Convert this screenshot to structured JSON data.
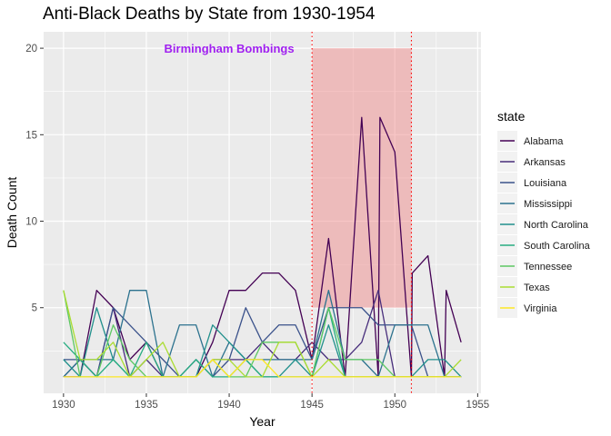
{
  "chart_data": {
    "type": "line",
    "title": "Anti-Black Deaths by State from 1930-1954",
    "xlabel": "Year",
    "ylabel": "Death Count",
    "xlim": [
      1928.8,
      1955.2
    ],
    "ylim": [
      0.05,
      20.95
    ],
    "x_ticks": [
      1930,
      1935,
      1940,
      1945,
      1950,
      1955
    ],
    "y_ticks": [
      5,
      10,
      15,
      20
    ],
    "grid": true,
    "legend_title": "state",
    "legend_position": "right",
    "annotation": {
      "label": "Birmingham Bombings",
      "x": 1940,
      "y": 20,
      "color": "#a020f0"
    },
    "highlight": {
      "x_range": [
        1945,
        1951
      ],
      "y_range": [
        5,
        20
      ],
      "color": "#f08080",
      "opacity": 0.45
    },
    "vlines": {
      "x": [
        1945,
        1951
      ],
      "color": "#ff0000",
      "style": "dotted"
    },
    "series": [
      {
        "name": "Alabama",
        "color": "#440154",
        "points": [
          [
            1930,
            1
          ],
          [
            1931,
            1
          ],
          [
            1932,
            6
          ],
          [
            1933,
            5
          ],
          [
            1934,
            2
          ],
          [
            1935,
            3
          ],
          [
            1936,
            1
          ],
          [
            1937,
            1
          ],
          [
            1938,
            1
          ],
          [
            1939,
            3
          ],
          [
            1940,
            6
          ],
          [
            1941,
            6
          ],
          [
            1942,
            7
          ],
          [
            1943,
            7
          ],
          [
            1944,
            6
          ],
          [
            1945,
            2
          ],
          [
            1946,
            9
          ],
          [
            1947,
            1
          ],
          [
            1948,
            16
          ],
          [
            1949,
            1
          ],
          [
            1949.1,
            16
          ],
          [
            1950,
            14
          ],
          [
            1951,
            1
          ],
          [
            1951.05,
            7
          ],
          [
            1952,
            8
          ],
          [
            1953,
            1
          ],
          [
            1953.1,
            6
          ],
          [
            1954,
            3
          ]
        ]
      },
      {
        "name": "Arkansas",
        "color": "#472d7b",
        "points": [
          [
            1930,
            1
          ],
          [
            1931,
            2
          ],
          [
            1932,
            1
          ],
          [
            1933,
            5
          ],
          [
            1934,
            1
          ],
          [
            1935,
            2
          ],
          [
            1936,
            1
          ],
          [
            1937,
            1
          ],
          [
            1938,
            1
          ],
          [
            1939,
            2
          ],
          [
            1940,
            2
          ],
          [
            1941,
            2
          ],
          [
            1942,
            3
          ],
          [
            1943,
            2
          ],
          [
            1944,
            2
          ],
          [
            1945,
            3
          ],
          [
            1946,
            2
          ],
          [
            1947,
            2
          ],
          [
            1948,
            3
          ],
          [
            1949,
            6
          ],
          [
            1950,
            1
          ],
          [
            1951,
            1
          ],
          [
            1952,
            1
          ],
          [
            1953,
            1
          ],
          [
            1954,
            1
          ]
        ]
      },
      {
        "name": "Louisiana",
        "color": "#3b528b",
        "points": [
          [
            1930,
            2
          ],
          [
            1931,
            2
          ],
          [
            1932,
            1
          ],
          [
            1933,
            5
          ],
          [
            1934,
            4
          ],
          [
            1935,
            3
          ],
          [
            1936,
            2
          ],
          [
            1937,
            1
          ],
          [
            1938,
            2
          ],
          [
            1939,
            1
          ],
          [
            1940,
            2
          ],
          [
            1941,
            5
          ],
          [
            1942,
            3
          ],
          [
            1943,
            4
          ],
          [
            1944,
            4
          ],
          [
            1945,
            2
          ],
          [
            1946,
            5
          ],
          [
            1947,
            5
          ],
          [
            1948,
            5
          ],
          [
            1949,
            4
          ],
          [
            1950,
            4
          ],
          [
            1951,
            4
          ],
          [
            1952,
            1
          ],
          [
            1953,
            1
          ],
          [
            1954,
            1
          ]
        ]
      },
      {
        "name": "Mississippi",
        "color": "#2c728e",
        "points": [
          [
            1930,
            1
          ],
          [
            1931,
            2
          ],
          [
            1932,
            2
          ],
          [
            1933,
            2
          ],
          [
            1934,
            6
          ],
          [
            1935,
            6
          ],
          [
            1936,
            1
          ],
          [
            1937,
            4
          ],
          [
            1938,
            4
          ],
          [
            1939,
            1
          ],
          [
            1940,
            3
          ],
          [
            1941,
            2
          ],
          [
            1942,
            2
          ],
          [
            1943,
            2
          ],
          [
            1944,
            2
          ],
          [
            1945,
            2
          ],
          [
            1946,
            6
          ],
          [
            1947,
            2
          ],
          [
            1948,
            2
          ],
          [
            1949,
            1
          ],
          [
            1950,
            4
          ],
          [
            1951,
            4
          ],
          [
            1952,
            4
          ],
          [
            1953,
            1
          ],
          [
            1954,
            1
          ]
        ]
      },
      {
        "name": "North Carolina",
        "color": "#21908c",
        "points": [
          [
            1930,
            2
          ],
          [
            1931,
            1
          ],
          [
            1932,
            5
          ],
          [
            1933,
            2
          ],
          [
            1934,
            1
          ],
          [
            1935,
            1
          ],
          [
            1936,
            1
          ],
          [
            1937,
            1
          ],
          [
            1938,
            1
          ],
          [
            1939,
            4
          ],
          [
            1940,
            3
          ],
          [
            1941,
            2
          ],
          [
            1942,
            1
          ],
          [
            1943,
            1
          ],
          [
            1944,
            2
          ],
          [
            1945,
            1
          ],
          [
            1946,
            4
          ],
          [
            1947,
            1
          ],
          [
            1948,
            1
          ],
          [
            1949,
            1
          ],
          [
            1950,
            1
          ],
          [
            1951,
            1
          ],
          [
            1952,
            2
          ],
          [
            1953,
            2
          ],
          [
            1954,
            1
          ]
        ]
      },
      {
        "name": "South Carolina",
        "color": "#27ad81",
        "points": [
          [
            1930,
            3
          ],
          [
            1931,
            2
          ],
          [
            1932,
            1
          ],
          [
            1933,
            2
          ],
          [
            1934,
            1
          ],
          [
            1935,
            3
          ],
          [
            1936,
            1
          ],
          [
            1937,
            1
          ],
          [
            1938,
            2
          ],
          [
            1939,
            1
          ],
          [
            1940,
            1
          ],
          [
            1941,
            2
          ],
          [
            1942,
            1
          ],
          [
            1943,
            1
          ],
          [
            1944,
            1
          ],
          [
            1945,
            1
          ],
          [
            1946,
            5
          ],
          [
            1947,
            1
          ],
          [
            1948,
            1
          ],
          [
            1949,
            1
          ],
          [
            1950,
            1
          ],
          [
            1951,
            1
          ],
          [
            1952,
            1
          ],
          [
            1953,
            1
          ],
          [
            1954,
            1
          ]
        ]
      },
      {
        "name": "Tennessee",
        "color": "#5dc863",
        "points": [
          [
            1930,
            6
          ],
          [
            1931,
            1
          ],
          [
            1932,
            1
          ],
          [
            1933,
            4
          ],
          [
            1934,
            2
          ],
          [
            1935,
            1
          ],
          [
            1936,
            1
          ],
          [
            1937,
            1
          ],
          [
            1938,
            1
          ],
          [
            1939,
            2
          ],
          [
            1940,
            1
          ],
          [
            1941,
            1
          ],
          [
            1942,
            3
          ],
          [
            1943,
            3
          ],
          [
            1944,
            3
          ],
          [
            1945,
            1
          ],
          [
            1946,
            5
          ],
          [
            1947,
            2
          ],
          [
            1948,
            2
          ],
          [
            1949,
            2
          ],
          [
            1950,
            1
          ],
          [
            1951,
            1
          ],
          [
            1952,
            1
          ],
          [
            1953,
            1
          ],
          [
            1954,
            1
          ]
        ]
      },
      {
        "name": "Texas",
        "color": "#aadc32",
        "points": [
          [
            1930,
            6
          ],
          [
            1931,
            2
          ],
          [
            1932,
            2
          ],
          [
            1933,
            3
          ],
          [
            1934,
            1
          ],
          [
            1935,
            2
          ],
          [
            1936,
            3
          ],
          [
            1937,
            1
          ],
          [
            1938,
            1
          ],
          [
            1939,
            2
          ],
          [
            1940,
            2
          ],
          [
            1941,
            1
          ],
          [
            1942,
            1
          ],
          [
            1943,
            3
          ],
          [
            1944,
            3
          ],
          [
            1945,
            1
          ],
          [
            1946,
            2
          ],
          [
            1947,
            1
          ],
          [
            1948,
            1
          ],
          [
            1949,
            1
          ],
          [
            1950,
            1
          ],
          [
            1951,
            1
          ],
          [
            1952,
            1
          ],
          [
            1953,
            1
          ],
          [
            1954,
            2
          ]
        ]
      },
      {
        "name": "Virginia",
        "color": "#fde725",
        "points": [
          [
            1930,
            1
          ],
          [
            1931,
            1
          ],
          [
            1932,
            1
          ],
          [
            1933,
            1
          ],
          [
            1934,
            1
          ],
          [
            1935,
            1
          ],
          [
            1936,
            1
          ],
          [
            1937,
            1
          ],
          [
            1938,
            1
          ],
          [
            1939,
            2
          ],
          [
            1940,
            1
          ],
          [
            1941,
            2
          ],
          [
            1942,
            2
          ],
          [
            1943,
            1
          ],
          [
            1944,
            1
          ],
          [
            1945,
            1
          ],
          [
            1946,
            1
          ],
          [
            1947,
            1
          ],
          [
            1948,
            1
          ],
          [
            1949,
            1
          ],
          [
            1950,
            1
          ],
          [
            1951,
            1
          ],
          [
            1952,
            1
          ],
          [
            1953,
            1
          ],
          [
            1954,
            1
          ]
        ]
      }
    ]
  }
}
